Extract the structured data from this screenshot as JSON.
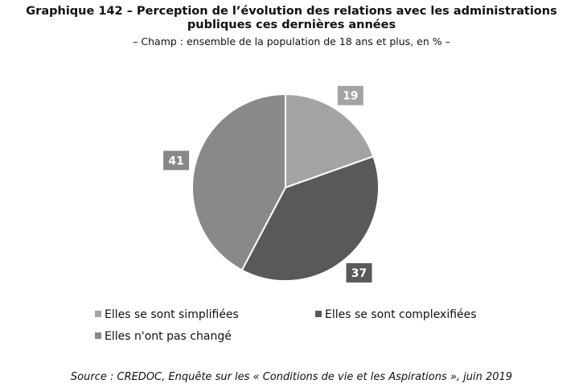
{
  "chart_data": {
    "type": "pie",
    "title": "Graphique 142 – Perception de l’évolution des relations avec les administrations publiques ces dernières années",
    "subtitle": "– Champ : ensemble de la population de 18 ans et plus, en % –",
    "categories": [
      "Elles se sont simplifiées",
      "Elles se sont complexifiées",
      "Elles n'ont pas changé"
    ],
    "values": [
      19,
      37,
      41
    ],
    "colors": [
      "#a3a3a3",
      "#595959",
      "#898989"
    ],
    "source": "Source : CREDOC, Enquête sur les « Conditions de vie et les Aspirations », juin 2019"
  }
}
